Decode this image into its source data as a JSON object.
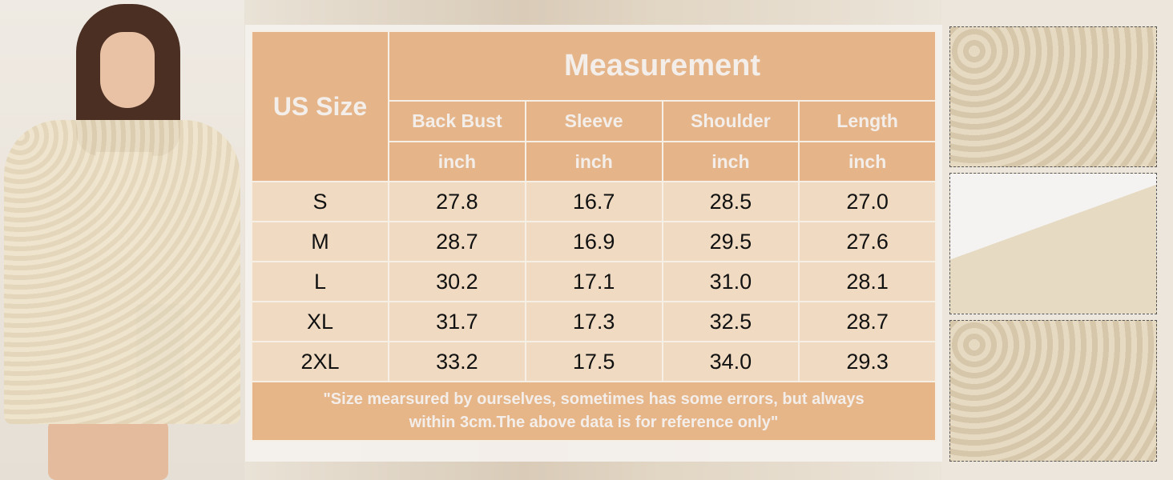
{
  "table": {
    "size_header": "US Size",
    "group_header": "Measurement",
    "columns": [
      "Back Bust",
      "Sleeve",
      "Shoulder",
      "Length"
    ],
    "unit": "inch",
    "rows": [
      {
        "size": "S",
        "values": [
          "27.8",
          "16.7",
          "28.5",
          "27.0"
        ]
      },
      {
        "size": "M",
        "values": [
          "28.7",
          "16.9",
          "29.5",
          "27.6"
        ]
      },
      {
        "size": "L",
        "values": [
          "30.2",
          "17.1",
          "31.0",
          "28.1"
        ]
      },
      {
        "size": "XL",
        "values": [
          "31.7",
          "17.3",
          "32.5",
          "28.7"
        ]
      },
      {
        "size": "2XL",
        "values": [
          "33.2",
          "17.5",
          "34.0",
          "29.3"
        ]
      }
    ],
    "note_line1": "\"Size mearsured by ourselves, sometimes has some errors, but always",
    "note_line2": "within 3cm.The above data is for reference only\""
  },
  "colors": {
    "header": "#e3b081",
    "row": "#f0d8be",
    "text_light": "#f3eeea"
  }
}
